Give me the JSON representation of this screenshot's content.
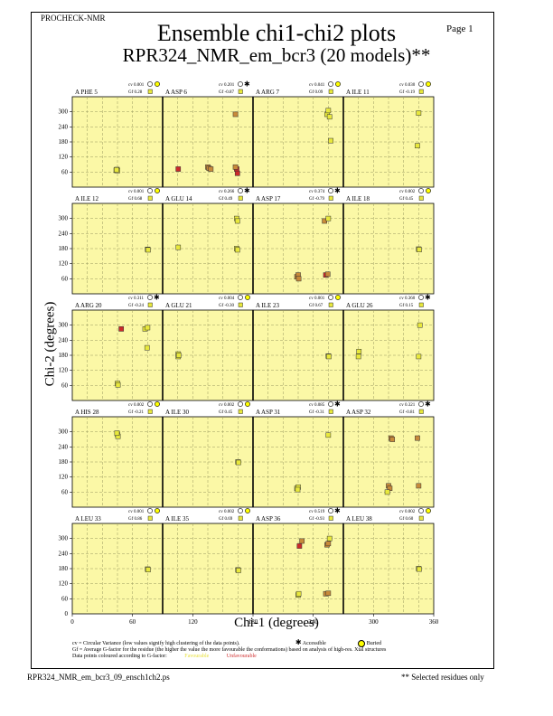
{
  "header": {
    "program": "PROCHECK-NMR",
    "page": "Page  1",
    "title": "Ensemble chi1-chi2 plots",
    "subtitle": "RPR324_NMR_em_bcr3 (20 models)**"
  },
  "axes": {
    "xlabel": "Chi-1 (degrees)",
    "ylabel": "Chi-2 (degrees)",
    "x_ticks": [
      "0",
      "60",
      "120",
      "180",
      "240",
      "300",
      "360"
    ],
    "y_ticks": [
      "60",
      "120",
      "180",
      "240",
      "300"
    ],
    "y_zero": "0"
  },
  "footer": {
    "cv_note": "cv = Circular Variance (low values signify high clustering of the data points).",
    "accessible": "Accessible",
    "buried": "Buried",
    "gf_note": "Gf = Average G-factor for the residue (the higher the value the more favourable the conformations) based on analysis of high-res. Xtal structures",
    "colour_note": "Data points coloured according to G-factor:",
    "favourable": "Favourable",
    "unfavourable": "Unfavourable",
    "filename": "RPR324_NMR_em_bcr3_09_ensch1ch2.ps",
    "selected": "** Selected residues only"
  },
  "colors": {
    "panel_bg": "#fbf8a6",
    "fav": "#e8e83c",
    "unfav": "#cc2a2a",
    "mid": "#c88a3a"
  },
  "chart_data": {
    "type": "scatter",
    "xlim": [
      0,
      360
    ],
    "ylim": [
      0,
      360
    ],
    "grid": true,
    "panels": [
      {
        "label": "A PHE 5",
        "cv": "cv 0.001",
        "gf": "Gf 0.28",
        "access": "buried",
        "points": [
          [
            175,
            67,
            "fav"
          ],
          [
            178,
            70,
            "fav"
          ],
          [
            180,
            66,
            "fav"
          ],
          [
            176,
            69,
            "fav"
          ]
        ]
      },
      {
        "label": "A ASP 6",
        "cv": "cv 0.201",
        "gf": "Gf -0.87",
        "access": "accessible",
        "points": [
          [
            62,
            72,
            "unfav"
          ],
          [
            180,
            80,
            "mid"
          ],
          [
            185,
            75,
            "mid"
          ],
          [
            192,
            72,
            "mid"
          ],
          [
            290,
            290,
            "mid"
          ],
          [
            295,
            72,
            "unfav"
          ],
          [
            298,
            55,
            "unfav"
          ],
          [
            290,
            80,
            "mid"
          ]
        ]
      },
      {
        "label": "A ARG 7",
        "cv": "cv 0.041",
        "gf": "Gf 0.09",
        "access": "buried",
        "points": [
          [
            295,
            290,
            "fav"
          ],
          [
            300,
            305,
            "fav"
          ],
          [
            305,
            280,
            "fav"
          ],
          [
            310,
            185,
            "fav"
          ]
        ]
      },
      {
        "label": "A ILE 11",
        "cv": "cv 0.030",
        "gf": "Gf -0.19",
        "access": "buried",
        "points": [
          [
            300,
            295,
            "fav"
          ],
          [
            295,
            165,
            "fav"
          ]
        ]
      },
      {
        "label": "A ILE 12",
        "cv": "cv 0.001",
        "gf": "Gf 0.68",
        "access": "buried",
        "points": [
          [
            300,
            177,
            "fav"
          ],
          [
            302,
            175,
            "fav"
          ]
        ]
      },
      {
        "label": "A GLU 14",
        "cv": "cv 0.266",
        "gf": "Gf 0.49",
        "access": "accessible",
        "points": [
          [
            62,
            185,
            "fav"
          ],
          [
            295,
            300,
            "fav"
          ],
          [
            298,
            290,
            "fav"
          ],
          [
            295,
            180,
            "fav"
          ],
          [
            298,
            175,
            "fav"
          ]
        ]
      },
      {
        "label": "A ASP 17",
        "cv": "cv 0.374",
        "gf": "Gf -0.79",
        "access": "accessible",
        "points": [
          [
            175,
            68,
            "mid"
          ],
          [
            180,
            75,
            "mid"
          ],
          [
            182,
            60,
            "mid"
          ],
          [
            285,
            290,
            "mid"
          ],
          [
            300,
            300,
            "fav"
          ],
          [
            290,
            75,
            "unfav"
          ],
          [
            298,
            78,
            "mid"
          ]
        ]
      },
      {
        "label": "A ILE 18",
        "cv": "cv 0.002",
        "gf": "Gf 0.45",
        "access": "buried",
        "points": [
          [
            300,
            178,
            "fav"
          ],
          [
            302,
            176,
            "fav"
          ]
        ]
      },
      {
        "label": "A ARG 20",
        "cv": "cv 0.311",
        "gf": "Gf -0.24",
        "access": "accessible",
        "points": [
          [
            180,
            68,
            "fav"
          ],
          [
            182,
            62,
            "fav"
          ],
          [
            195,
            285,
            "unfav"
          ],
          [
            290,
            285,
            "fav"
          ],
          [
            300,
            290,
            "fav"
          ],
          [
            298,
            210,
            "fav"
          ]
        ]
      },
      {
        "label": "A GLU 21",
        "cv": "cv 0.004",
        "gf": "Gf -0.30",
        "access": "buried",
        "points": [
          [
            62,
            185,
            "fav"
          ],
          [
            62,
            175,
            "fav"
          ],
          [
            64,
            180,
            "fav"
          ]
        ]
      },
      {
        "label": "A ILE 23",
        "cv": "cv 0.001",
        "gf": "Gf 0.67",
        "access": "buried",
        "points": [
          [
            300,
            177,
            "fav"
          ],
          [
            302,
            175,
            "fav"
          ]
        ]
      },
      {
        "label": "A GLU 26",
        "cv": "cv 0.360",
        "gf": "Gf 0.15",
        "access": "accessible",
        "points": [
          [
            60,
            175,
            "fav"
          ],
          [
            62,
            195,
            "fav"
          ],
          [
            300,
            175,
            "fav"
          ],
          [
            305,
            300,
            "fav"
          ]
        ]
      },
      {
        "label": "A HIS 28",
        "cv": "cv 0.002",
        "gf": "Gf -0.21",
        "access": "buried",
        "points": [
          [
            180,
            290,
            "fav"
          ],
          [
            182,
            282,
            "fav"
          ],
          [
            178,
            295,
            "fav"
          ]
        ]
      },
      {
        "label": "A ILE 30",
        "cv": "cv 0.002",
        "gf": "Gf 0.45",
        "access": "buried",
        "points": [
          [
            300,
            180,
            "fav"
          ],
          [
            302,
            178,
            "fav"
          ]
        ]
      },
      {
        "label": "A ASP 31",
        "cv": "cv 0.085",
        "gf": "Gf -0.31",
        "access": "accessible",
        "points": [
          [
            175,
            75,
            "fav"
          ],
          [
            180,
            80,
            "fav"
          ],
          [
            178,
            70,
            "fav"
          ],
          [
            300,
            287,
            "fav"
          ]
        ]
      },
      {
        "label": "A ASP 32",
        "cv": "cv 0.321",
        "gf": "Gf -0.81",
        "access": "accessible",
        "points": [
          [
            190,
            275,
            "mid"
          ],
          [
            195,
            270,
            "mid"
          ],
          [
            180,
            85,
            "mid"
          ],
          [
            185,
            75,
            "mid"
          ],
          [
            175,
            60,
            "fav"
          ],
          [
            295,
            275,
            "mid"
          ],
          [
            300,
            85,
            "mid"
          ]
        ]
      },
      {
        "label": "A LEU 33",
        "cv": "cv 0.001",
        "gf": "Gf 0.86",
        "access": "buried",
        "points": [
          [
            300,
            178,
            "fav"
          ],
          [
            302,
            176,
            "fav"
          ]
        ]
      },
      {
        "label": "A ILE 35",
        "cv": "cv 0.002",
        "gf": "Gf 0.69",
        "access": "buried",
        "points": [
          [
            300,
            175,
            "fav"
          ],
          [
            302,
            173,
            "fav"
          ]
        ]
      },
      {
        "label": "A ASP 36",
        "cv": "cv 0.519",
        "gf": "Gf -0.93",
        "access": "accessible",
        "points": [
          [
            180,
            75,
            "fav"
          ],
          [
            182,
            80,
            "fav"
          ],
          [
            185,
            270,
            "unfav"
          ],
          [
            195,
            290,
            "mid"
          ],
          [
            290,
            80,
            "mid"
          ],
          [
            300,
            82,
            "mid"
          ],
          [
            295,
            275,
            "mid"
          ],
          [
            300,
            280,
            "mid"
          ],
          [
            305,
            300,
            "fav"
          ]
        ]
      },
      {
        "label": "A LEU 38",
        "cv": "cv 0.002",
        "gf": "Gf 0.60",
        "access": "buried",
        "points": [
          [
            300,
            180,
            "fav"
          ],
          [
            302,
            178,
            "fav"
          ]
        ]
      }
    ]
  }
}
